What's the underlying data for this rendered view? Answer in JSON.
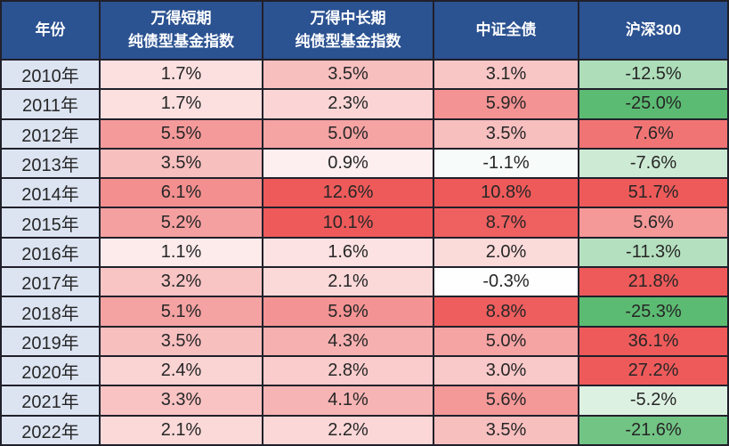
{
  "colors": {
    "header_bg": "#2B5291",
    "header_text": "#FFFFFF",
    "year_col_bg": "#DCE4F2",
    "border": "#20202A",
    "cell_text": "#262626",
    "positive_max": "#EE5A5A",
    "negative_max": "#5CBB72",
    "neutral": "#FFFFFF"
  },
  "table": {
    "header": {
      "year": "年份",
      "wind_short_line1": "万得短期",
      "wind_short_line2": "纯债型基金指数",
      "wind_mid_long_line1": "万得中长期",
      "wind_mid_long_line2": "纯债型基金指数",
      "csi_bond": "中证全债",
      "csi300": "沪深300"
    },
    "rows": [
      {
        "year": "2010年",
        "values": [
          "1.7%",
          "3.5%",
          "3.1%",
          "-12.5%"
        ],
        "colors": [
          "#FCE0E0",
          "#F8BFBF",
          "#F9C6C6",
          "#AEDDB9"
        ]
      },
      {
        "year": "2011年",
        "values": [
          "1.7%",
          "2.3%",
          "5.9%",
          "-25.0%"
        ],
        "colors": [
          "#FCE0E0",
          "#FBD5D5",
          "#F49393",
          "#5CBB72"
        ]
      },
      {
        "year": "2012年",
        "values": [
          "5.5%",
          "5.0%",
          "3.5%",
          "7.6%"
        ],
        "colors": [
          "#F59A9A",
          "#F6A3A3",
          "#F8BFBF",
          "#F17474"
        ]
      },
      {
        "year": "2013年",
        "values": [
          "3.5%",
          "0.9%",
          "-1.1%",
          "-7.6%"
        ],
        "colors": [
          "#F8BFBF",
          "#FDEFEF",
          "#F7FBF9",
          "#CDEAD4"
        ]
      },
      {
        "year": "2014年",
        "values": [
          "6.1%",
          "12.6%",
          "10.8%",
          "51.7%"
        ],
        "colors": [
          "#F38F8F",
          "#EE5A5A",
          "#EE5A5A",
          "#EE5A5A"
        ]
      },
      {
        "year": "2015年",
        "values": [
          "5.2%",
          "10.1%",
          "8.7%",
          "5.6%"
        ],
        "colors": [
          "#F5A0A0",
          "#EE5A5A",
          "#EF6060",
          "#F49898"
        ]
      },
      {
        "year": "2016年",
        "values": [
          "1.1%",
          "1.6%",
          "2.0%",
          "-11.3%"
        ],
        "colors": [
          "#FDEBEB",
          "#FCE2E2",
          "#FBDADA",
          "#B5E0BF"
        ]
      },
      {
        "year": "2017年",
        "values": [
          "3.2%",
          "2.1%",
          "-0.3%",
          "21.8%"
        ],
        "colors": [
          "#F9C4C4",
          "#FBD9D9",
          "#FDFEFD",
          "#EE5A5A"
        ]
      },
      {
        "year": "2018年",
        "values": [
          "5.1%",
          "5.9%",
          "8.8%",
          "-25.3%"
        ],
        "colors": [
          "#F5A2A2",
          "#F49393",
          "#EE5E5E",
          "#5CBB72"
        ]
      },
      {
        "year": "2019年",
        "values": [
          "3.5%",
          "4.3%",
          "5.0%",
          "36.1%"
        ],
        "colors": [
          "#F8BFBF",
          "#F7B0B0",
          "#F6A3A3",
          "#EE5A5A"
        ]
      },
      {
        "year": "2020年",
        "values": [
          "2.4%",
          "2.8%",
          "3.0%",
          "27.2%"
        ],
        "colors": [
          "#FAD3D3",
          "#FACCCC",
          "#F9C8C8",
          "#EE5A5A"
        ]
      },
      {
        "year": "2021年",
        "values": [
          "3.3%",
          "4.1%",
          "5.6%",
          "-5.2%"
        ],
        "colors": [
          "#F9C3C3",
          "#F7B4B4",
          "#F49898",
          "#DDF1E2"
        ]
      },
      {
        "year": "2022年",
        "values": [
          "2.1%",
          "2.2%",
          "3.5%",
          "-21.6%"
        ],
        "colors": [
          "#FBD9D9",
          "#FBD7D7",
          "#F8BFBF",
          "#72C485"
        ]
      }
    ]
  },
  "chart_data": {
    "type": "table",
    "unit": "%",
    "columns": [
      "年份",
      "万得短期纯债型基金指数",
      "万得中长期纯债型基金指数",
      "中证全债",
      "沪深300"
    ],
    "categories": [
      "2010年",
      "2011年",
      "2012年",
      "2013年",
      "2014年",
      "2015年",
      "2016年",
      "2017年",
      "2018年",
      "2019年",
      "2020年",
      "2021年",
      "2022年"
    ],
    "series": [
      {
        "name": "万得短期纯债型基金指数",
        "values": [
          1.7,
          1.7,
          5.5,
          3.5,
          6.1,
          5.2,
          1.1,
          3.2,
          5.1,
          3.5,
          2.4,
          3.3,
          2.1
        ]
      },
      {
        "name": "万得中长期纯债型基金指数",
        "values": [
          3.5,
          2.3,
          5.0,
          0.9,
          12.6,
          10.1,
          1.6,
          2.1,
          5.9,
          4.3,
          2.8,
          4.1,
          2.2
        ]
      },
      {
        "name": "中证全债",
        "values": [
          3.1,
          5.9,
          3.5,
          -1.1,
          10.8,
          8.7,
          2.0,
          -0.3,
          8.8,
          5.0,
          3.0,
          5.6,
          3.5
        ]
      },
      {
        "name": "沪深300",
        "values": [
          -12.5,
          -25.0,
          7.6,
          -7.6,
          51.7,
          5.6,
          -11.3,
          21.8,
          -25.3,
          36.1,
          27.2,
          -5.2,
          -21.6
        ]
      }
    ],
    "layout_hints": {
      "heatmap": "cell backgrounds shade red for positive values and green for negative values, intensity scaled by magnitude",
      "grid": true,
      "legend": false
    }
  }
}
